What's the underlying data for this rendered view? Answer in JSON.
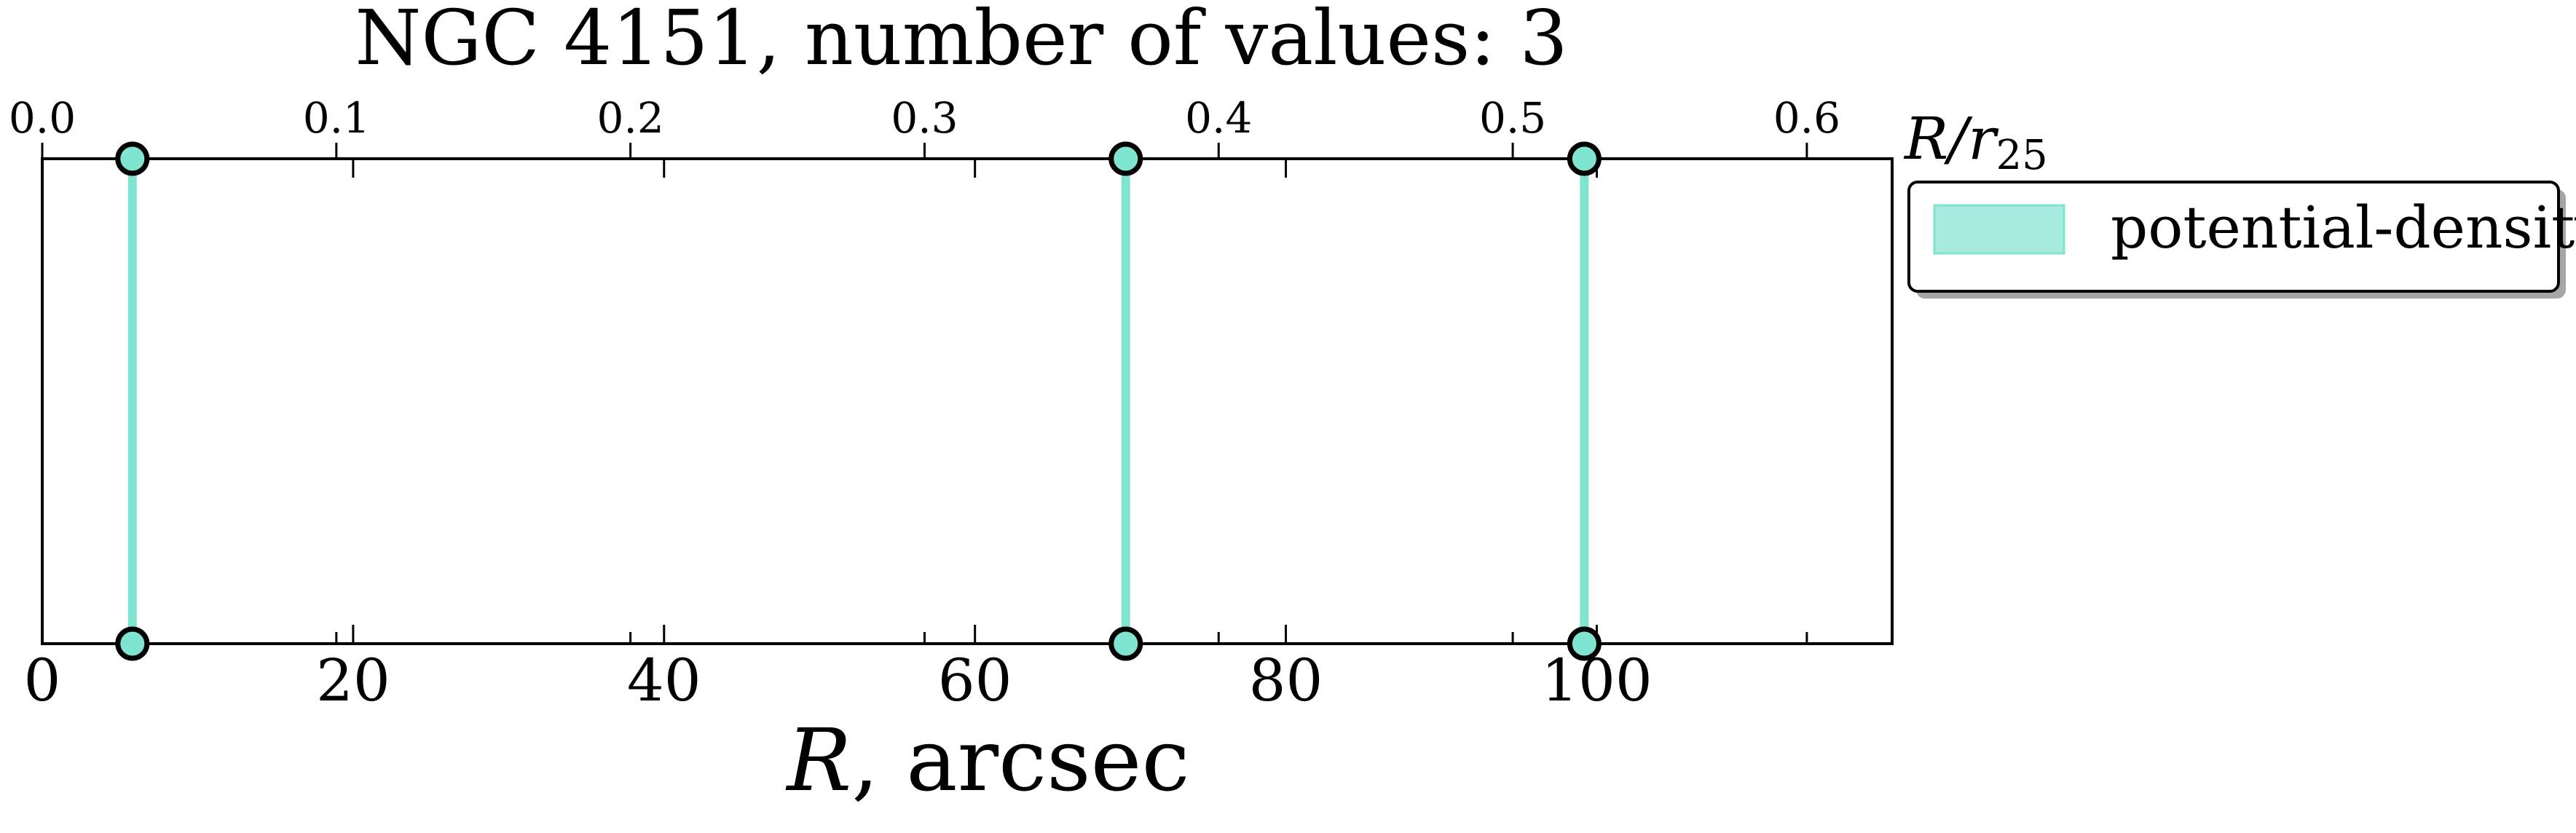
{
  "chart_data": {
    "type": "scatter",
    "title": "NGC 4151, number of values: 3",
    "xlabel": {
      "symbol": "R",
      "unit": ", arcsec"
    },
    "top_xlabel": {
      "symbol": "R/r",
      "subscript": "25"
    },
    "xlim": [
      0,
      119
    ],
    "x_ticks": [
      0,
      20,
      40,
      60,
      80,
      100
    ],
    "x_tick_labels": [
      "0",
      "20",
      "40",
      "60",
      "80",
      "100"
    ],
    "top_xlim": [
      0.0,
      0.629
    ],
    "top_ticks": [
      0.0,
      0.1,
      0.2,
      0.3,
      0.4,
      0.5,
      0.6
    ],
    "top_tick_labels": [
      "0.0",
      "0.1",
      "0.2",
      "0.3",
      "0.4",
      "0.5",
      "0.6"
    ],
    "y_ticks_shown": false,
    "grid": false,
    "legend_position": "outside-right-top",
    "series": [
      {
        "name": "potential-density",
        "color": "#7fe5d0",
        "x": [
          5.8,
          69.7,
          99.2
        ]
      }
    ]
  }
}
